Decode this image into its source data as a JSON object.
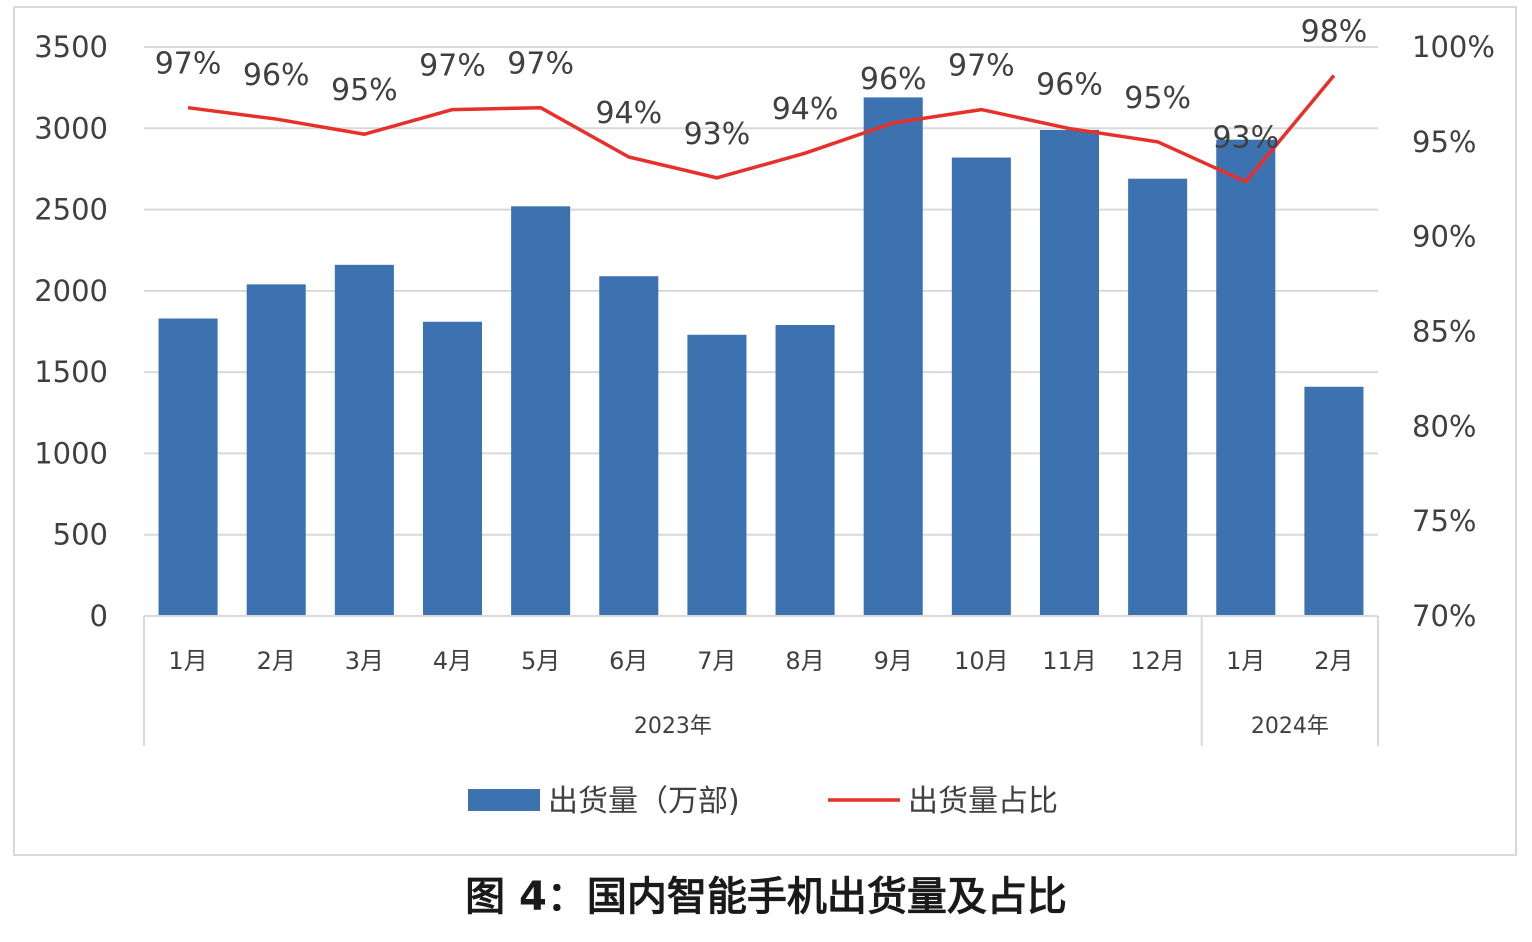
{
  "chart_data": {
    "type": "bar+line",
    "categories": [
      "1月",
      "2月",
      "3月",
      "4月",
      "5月",
      "6月",
      "7月",
      "8月",
      "9月",
      "10月",
      "11月",
      "12月",
      "1月",
      "2月"
    ],
    "year_groups": [
      {
        "label": "2023年",
        "count": 12
      },
      {
        "label": "2024年",
        "count": 2
      }
    ],
    "series": [
      {
        "name": "出货量（万部)",
        "type": "bar",
        "axis": "left",
        "color": "#3c72b0",
        "values": [
          1830,
          2040,
          2160,
          1810,
          2520,
          2090,
          1730,
          1790,
          3190,
          2820,
          2990,
          2690,
          2930,
          1410
        ]
      },
      {
        "name": "出货量占比",
        "type": "line",
        "axis": "right",
        "color": "#e8302a",
        "values": [
          96.8,
          96.2,
          95.4,
          96.7,
          96.8,
          94.2,
          93.1,
          94.4,
          96.0,
          96.7,
          95.7,
          95.0,
          92.9,
          98.5
        ],
        "labels": [
          "97%",
          "96%",
          "95%",
          "97%",
          "97%",
          "94%",
          "93%",
          "94%",
          "96%",
          "97%",
          "96%",
          "95%",
          "93%",
          "98%"
        ]
      }
    ],
    "left_axis": {
      "min": 0,
      "max": 3500,
      "step": 500,
      "ticks": [
        "0",
        "500",
        "1000",
        "1500",
        "2000",
        "2500",
        "3000",
        "3500"
      ]
    },
    "right_axis": {
      "min": 70,
      "max": 100,
      "step": 5,
      "ticks": [
        "70%",
        "75%",
        "80%",
        "85%",
        "90%",
        "95%",
        "100%"
      ]
    },
    "grid": true,
    "legend": {
      "position": "bottom"
    }
  },
  "caption": "图 4：国内智能手机出货量及占比"
}
